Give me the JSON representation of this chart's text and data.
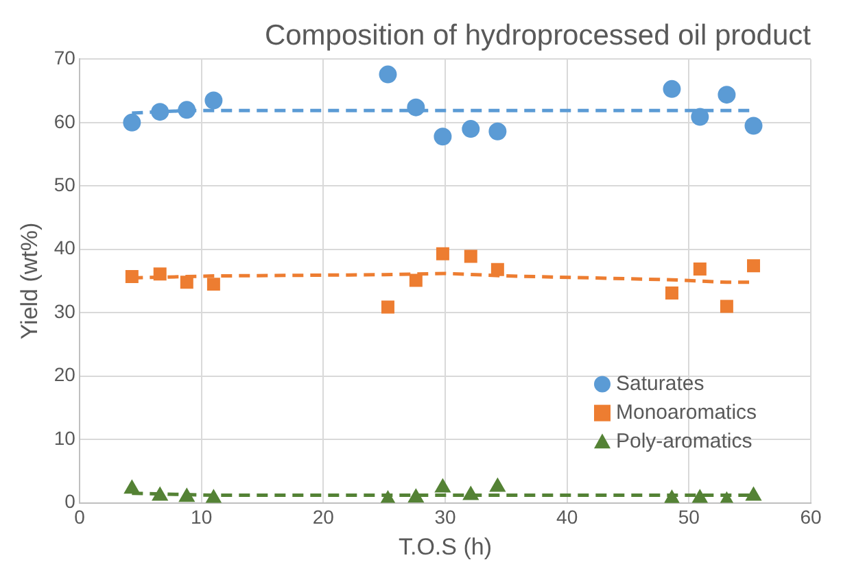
{
  "chart_data": {
    "type": "scatter",
    "title": "Composition of hydroprocessed oil product",
    "xlabel": "T.O.S (h)",
    "ylabel": "Yield (wt%)",
    "x": [
      4.3,
      6.6,
      8.8,
      11,
      25.3,
      27.6,
      29.8,
      32.1,
      34.3,
      48.6,
      50.9,
      53.1,
      55.3
    ],
    "series": [
      {
        "name": "Saturates",
        "color": "#5b9bd5",
        "marker": "circle",
        "values": [
          60,
          61.7,
          62,
          63.5,
          67.6,
          62.4,
          57.8,
          59,
          58.6,
          65.3,
          60.9,
          64.4,
          59.5
        ]
      },
      {
        "name": "Monoaromatics",
        "color": "#ed7d31",
        "marker": "square",
        "values": [
          35.7,
          36.1,
          34.8,
          34.5,
          30.9,
          35.1,
          39.3,
          38.9,
          36.8,
          33.1,
          36.9,
          31,
          37.4
        ]
      },
      {
        "name": "Poly-aromatics",
        "color": "#548235",
        "marker": "triangle",
        "values": [
          2.2,
          1.1,
          0.9,
          0.7,
          0.5,
          0.8,
          2.4,
          1.2,
          2.5,
          0.6,
          0.7,
          0.3,
          1.1
        ]
      },
      {
        "type": "line",
        "color": "#5b9bd5",
        "line_style": "dashed",
        "marker": "none",
        "x": [
          4.3,
          8.8,
          55.3
        ],
        "values": [
          61.5,
          61.9,
          61.9
        ]
      },
      {
        "type": "line",
        "color": "#ed7d31",
        "line_style": "dashed",
        "marker": "none",
        "x": [
          4.3,
          11,
          25,
          30,
          35,
          48.6,
          53.1,
          55.3
        ],
        "values": [
          35.5,
          35.8,
          36,
          36.2,
          35.8,
          35.2,
          34.8,
          34.8
        ]
      },
      {
        "type": "line",
        "color": "#548235",
        "line_style": "dashed",
        "marker": "none",
        "x": [
          4.3,
          11,
          55.3
        ],
        "values": [
          1.5,
          1.2,
          1.2
        ]
      }
    ],
    "xlim": [
      0,
      60
    ],
    "xticks": [
      0,
      10,
      20,
      30,
      40,
      50,
      60
    ],
    "ylim": [
      0,
      70
    ],
    "yticks": [
      0,
      10,
      20,
      30,
      40,
      50,
      60,
      70
    ],
    "grid": true,
    "legend": "bottom right"
  }
}
